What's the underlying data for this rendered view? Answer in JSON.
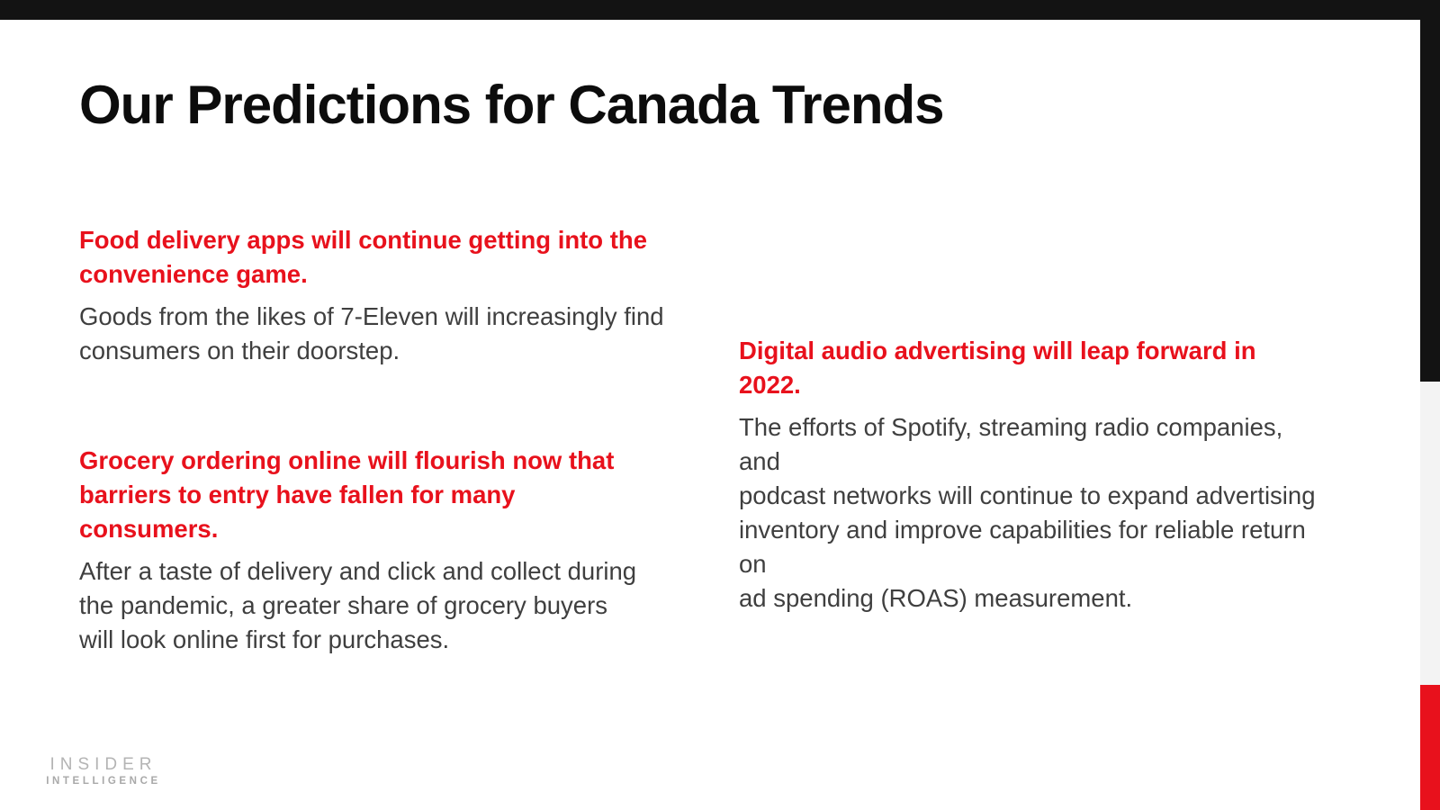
{
  "title": "Our Predictions for Canada Trends",
  "colors": {
    "top_bar": "#131313",
    "stripe_black": "#131313",
    "stripe_gray": "#f3f3f3",
    "stripe_red": "#e8111c",
    "heading_red": "#e8111c",
    "body_gray": "#3f3f3f",
    "title_black": "#0c0c0c",
    "logo_gray": "#b4b4b4"
  },
  "predictions": {
    "left": [
      {
        "heading": "Food delivery apps will continue getting into the\nconvenience game.",
        "body": "Goods from the likes of 7-Eleven will increasingly find\nconsumers on their doorstep."
      },
      {
        "heading": "Grocery ordering online will flourish now that\nbarriers to entry have fallen for many\nconsumers.",
        "body": "After a taste of delivery and click and collect during\nthe pandemic, a greater share of grocery buyers\nwill look online first for purchases."
      }
    ],
    "right": [
      {
        "heading": "Digital audio advertising will leap forward in 2022.",
        "body": "The efforts of Spotify, streaming radio companies, and\npodcast networks will continue to expand advertising\ninventory and improve capabilities for reliable return on\nad spending (ROAS) measurement."
      }
    ]
  },
  "logo": {
    "line1": "INSIDER",
    "line2": "INTELLIGENCE"
  }
}
